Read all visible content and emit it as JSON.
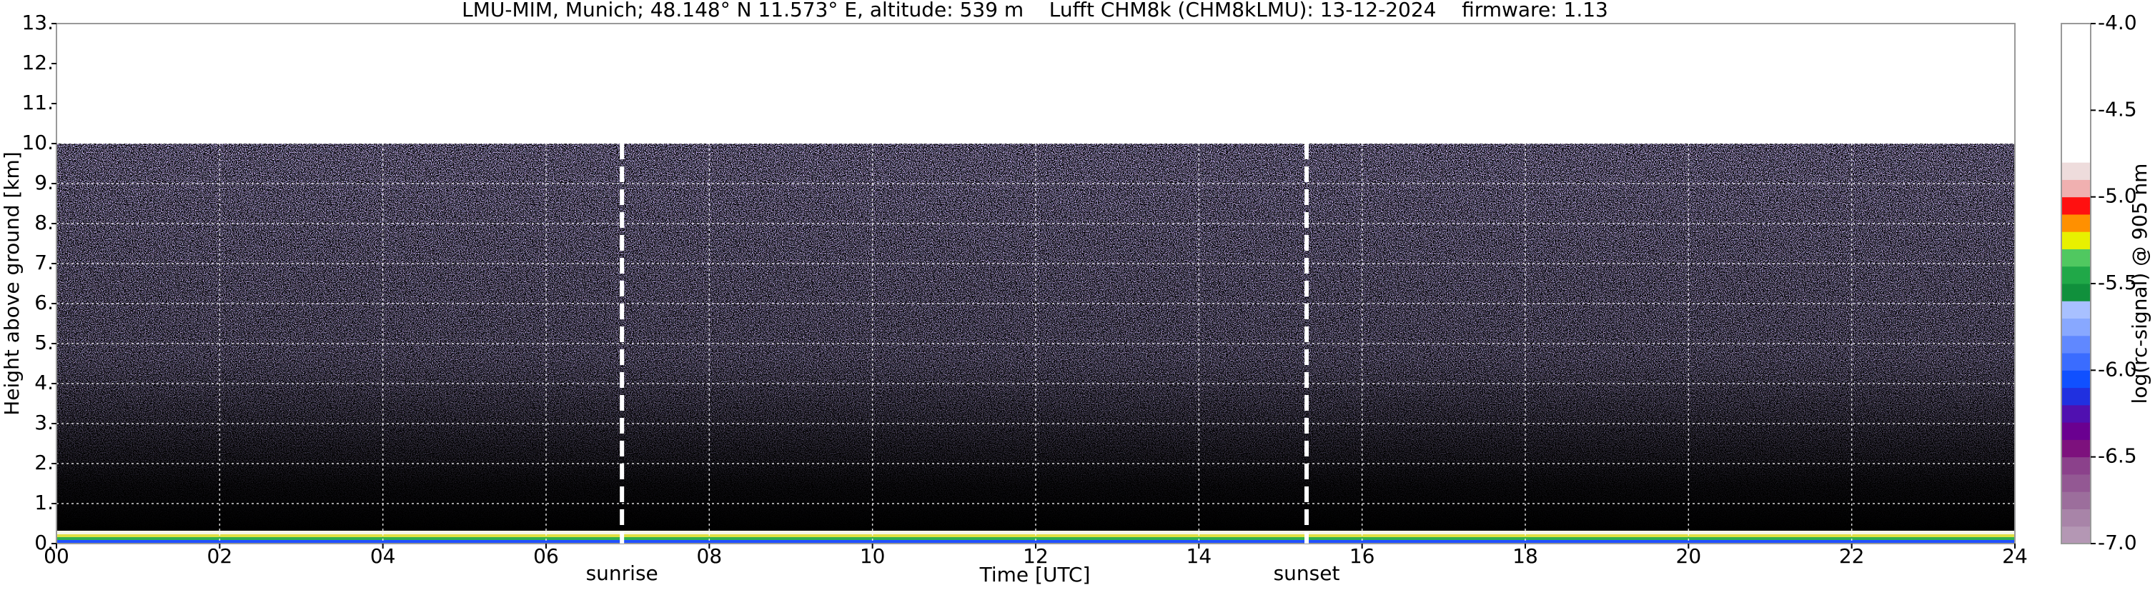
{
  "chart_data": {
    "type": "heatmap",
    "title": "LMU-MIM, Munich; 48.148° N 11.573° E, altitude: 539 m    Lufft CHM8k (CHM8kLMU): 13-12-2024    firmware: 1.13",
    "x_label": "Time [UTC]",
    "y_label": "Height above ground [km]",
    "xlim": [
      0,
      24
    ],
    "xticks": [
      {
        "value": 0,
        "label": "00"
      },
      {
        "value": 2,
        "label": "02"
      },
      {
        "value": 4,
        "label": "04"
      },
      {
        "value": 6,
        "label": "06"
      },
      {
        "value": 8,
        "label": "08"
      },
      10,
      12,
      14,
      16,
      18,
      20,
      22,
      24
    ],
    "ylim": [
      0,
      13
    ],
    "yticks": [
      {
        "value": 0,
        "label": "0."
      },
      {
        "value": 1,
        "label": "1."
      },
      {
        "value": 2,
        "label": "2."
      },
      {
        "value": 3,
        "label": "3."
      },
      {
        "value": 4,
        "label": "4."
      },
      {
        "value": 5,
        "label": "5."
      },
      {
        "value": 6,
        "label": "6."
      },
      {
        "value": 7,
        "label": "7."
      },
      {
        "value": 8,
        "label": "8."
      },
      {
        "value": 9,
        "label": "9."
      },
      {
        "value": 10,
        "label": "10."
      },
      {
        "value": 11,
        "label": "11."
      },
      {
        "value": 12,
        "label": "12."
      },
      {
        "value": 13,
        "label": "13."
      }
    ],
    "grid": true,
    "annotations": [
      {
        "text": "sunrise",
        "x": 6.93
      },
      {
        "text": "sunset",
        "x": 15.32
      }
    ],
    "colorbar": {
      "label": "log(rc-signal) @ 905 nm",
      "lim": [
        -7,
        -4
      ],
      "ticks": [
        {
          "value": -4,
          "label": "-4.0"
        },
        -4.5,
        {
          "value": -5,
          "label": "-5.0"
        },
        -5.5,
        {
          "value": -6,
          "label": "-6.0"
        },
        -6.5,
        {
          "value": -7,
          "label": "-7.0"
        }
      ],
      "colors": [
        "#b497b4",
        "#a884a8",
        "#9c6e9c",
        "#935893",
        "#8b418b",
        "#7d117d",
        "#6a0090",
        "#5010b0",
        "#2030e0",
        "#1050ff",
        "#3a6cff",
        "#6088ff",
        "#88a8ff",
        "#a8c0ff",
        "#10903c",
        "#20a848",
        "#50c860",
        "#e8f000",
        "#ff9000",
        "#ff1010",
        "#f0b0b0",
        "#eedcdc",
        "#ffffff",
        "#ffffff",
        "#ffffff",
        "#ffffff",
        "#ffffff",
        "#ffffff",
        "#ffffff",
        "#ffffff"
      ]
    }
  }
}
